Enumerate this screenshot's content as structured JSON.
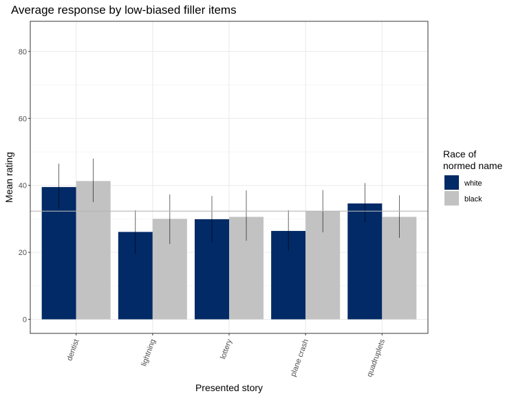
{
  "chart_data": {
    "type": "bar",
    "title": "Average response by low-biased filler items",
    "xlabel": "Presented story",
    "ylabel": "Mean rating",
    "categories": [
      "dentist",
      "lightning",
      "lottery",
      "plane crash",
      "quadruplets"
    ],
    "series": [
      {
        "name": "white",
        "color": "#012a66",
        "values": [
          39.5,
          26.1,
          29.9,
          26.4,
          34.6
        ],
        "error_low": [
          33.0,
          19.5,
          23.0,
          20.5,
          29.0
        ],
        "error_high": [
          46.5,
          32.6,
          36.8,
          32.6,
          40.7
        ]
      },
      {
        "name": "black",
        "color": "#c2c2c2",
        "values": [
          41.3,
          30.0,
          30.6,
          32.3,
          30.6
        ],
        "error_low": [
          35.0,
          22.5,
          23.5,
          26.0,
          24.3
        ],
        "error_high": [
          48.0,
          37.3,
          38.5,
          38.6,
          37.0
        ]
      }
    ],
    "reference_line": 32.3,
    "yticks": [
      0,
      20,
      40,
      60,
      80
    ],
    "ylim": [
      -4.2,
      89
    ],
    "grid": true,
    "legend": {
      "title": "Race of\nnormed name",
      "placement": "right"
    }
  }
}
